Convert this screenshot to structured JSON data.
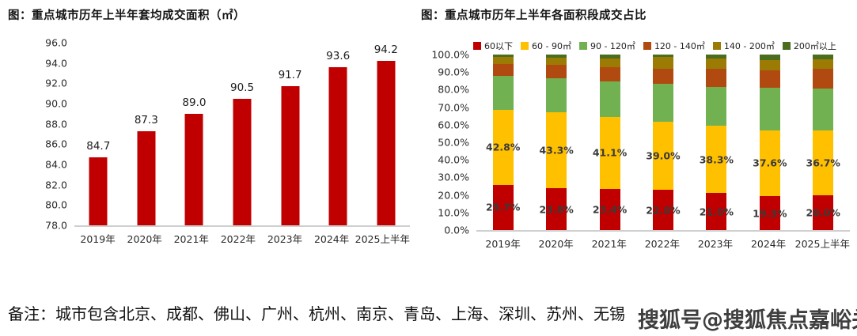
{
  "note": "备注：城市包含北京、成都、佛山、广州、杭州、南京、青岛、上海、深圳、苏州、无锡",
  "watermark": "搜狐号@搜狐焦点嘉峪关站",
  "colors": {
    "bar_red": "#c00000",
    "yellow": "#ffc000",
    "green": "#72b152",
    "dark_orange": "#b04a10",
    "olive": "#9c7b04",
    "dark_green": "#4a6e1d",
    "axis_line": "#cfcfcf"
  },
  "chart_data": [
    {
      "type": "bar",
      "title": "图：重点城市历年上半年套均成交面积（㎡）",
      "categories": [
        "2019年",
        "2020年",
        "2021年",
        "2022年",
        "2023年",
        "2024年",
        "2025上半年"
      ],
      "values": [
        84.7,
        87.3,
        89.0,
        90.5,
        91.7,
        93.6,
        94.2
      ],
      "value_labels": [
        "84.7",
        "87.3",
        "89.0",
        "90.5",
        "91.7",
        "93.6",
        "94.2"
      ],
      "ylim": [
        78.0,
        96.0
      ],
      "ytick_labels": [
        "96.0",
        "94.0",
        "92.0",
        "90.0",
        "88.0",
        "86.0",
        "84.0",
        "82.0",
        "80.0",
        "78.0"
      ],
      "bar_color": "#c00000",
      "grid": false,
      "legend_position": "none"
    },
    {
      "type": "stacked-bar",
      "title": "图：重点城市历年上半年各面积段成交占比",
      "categories": [
        "2019年",
        "2020年",
        "2021年",
        "2022年",
        "2023年",
        "2024年",
        "2025上半年"
      ],
      "series": [
        {
          "name": "60以下",
          "color": "#c00000",
          "values": [
            25.7,
            23.8,
            23.4,
            22.8,
            21.0,
            19.3,
            20.0
          ],
          "labels": [
            "25.7%",
            "23.8%",
            "23.4%",
            "22.8%",
            "21.0%",
            "19.3%",
            "20.0%"
          ]
        },
        {
          "name": "60 - 90㎡",
          "color": "#ffc000",
          "values": [
            42.8,
            43.3,
            41.1,
            39.0,
            38.3,
            37.6,
            36.7
          ],
          "labels": [
            "42.8%",
            "43.3%",
            "41.1%",
            "39.0%",
            "38.3%",
            "37.6%",
            "36.7%"
          ]
        },
        {
          "name": "90 - 120㎡",
          "color": "#72b152",
          "values": [
            19.5,
            19.6,
            20.4,
            21.4,
            22.3,
            24.2,
            23.8
          ]
        },
        {
          "name": "120 - 140㎡",
          "color": "#b04a10",
          "values": [
            6.5,
            7.3,
            8.1,
            8.9,
            10.4,
            9.8,
            11.5
          ]
        },
        {
          "name": "140 - 200㎡",
          "color": "#9c7b04",
          "values": [
            4.0,
            4.0,
            4.8,
            6.4,
            5.6,
            6.0,
            5.2
          ]
        },
        {
          "name": "200㎡以上",
          "color": "#4a6e1d",
          "values": [
            1.5,
            2.0,
            2.2,
            1.5,
            2.4,
            3.1,
            2.8
          ]
        }
      ],
      "ylim": [
        0,
        100
      ],
      "ytick_labels": [
        "100.0%",
        "90.0%",
        "80.0%",
        "70.0%",
        "60.0%",
        "50.0%",
        "40.0%",
        "30.0%",
        "20.0%",
        "10.0%",
        "0.0%"
      ],
      "grid": false,
      "legend_position": "top"
    }
  ]
}
